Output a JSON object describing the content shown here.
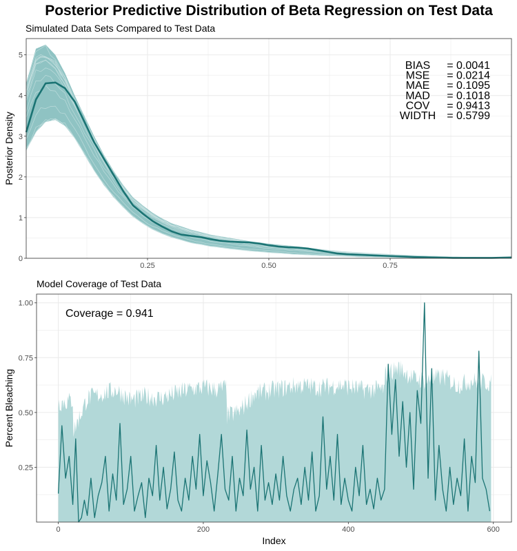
{
  "title": "Posterior Predictive Distribution of Beta Regression on Test Data",
  "colors": {
    "teal_dark": "#1a7373",
    "teal_band": "#8fc3c3",
    "teal_light": "#b2d8d8",
    "grid": "#ebebeb",
    "panel_border": "#333333"
  },
  "chart_data": [
    {
      "type": "area",
      "title": "Simulated Data Sets Compared to Test Data",
      "xlabel": "",
      "ylabel": "Posterior Density",
      "xlim": [
        0,
        1
      ],
      "ylim": [
        0,
        5.4
      ],
      "x_ticks": [
        0.25,
        0.5,
        0.75
      ],
      "x_tick_labels": [
        "0.25",
        "0.50",
        "0.75"
      ],
      "y_ticks": [
        0,
        1,
        2,
        3,
        4,
        5
      ],
      "y_tick_labels": [
        "0",
        "1",
        "2",
        "3",
        "4",
        "5"
      ],
      "grid": true,
      "series": [
        {
          "name": "observed density",
          "x": [
            0,
            0.02,
            0.04,
            0.06,
            0.08,
            0.1,
            0.12,
            0.14,
            0.16,
            0.18,
            0.2,
            0.22,
            0.24,
            0.26,
            0.28,
            0.3,
            0.32,
            0.34,
            0.36,
            0.38,
            0.4,
            0.42,
            0.44,
            0.46,
            0.48,
            0.5,
            0.52,
            0.54,
            0.56,
            0.58,
            0.6,
            0.62,
            0.64,
            0.66,
            0.68,
            0.7,
            0.72,
            0.74,
            0.76,
            0.78,
            0.8,
            0.84,
            0.88,
            0.92,
            0.96,
            1.0
          ],
          "values": [
            3.1,
            3.9,
            4.3,
            4.32,
            4.18,
            3.85,
            3.35,
            2.85,
            2.45,
            2.05,
            1.65,
            1.3,
            1.1,
            0.92,
            0.78,
            0.66,
            0.58,
            0.55,
            0.52,
            0.47,
            0.43,
            0.41,
            0.4,
            0.39,
            0.36,
            0.32,
            0.29,
            0.27,
            0.26,
            0.24,
            0.2,
            0.16,
            0.12,
            0.1,
            0.09,
            0.08,
            0.07,
            0.06,
            0.05,
            0.04,
            0.03,
            0.02,
            0.01,
            0.01,
            0.01,
            0.02
          ]
        },
        {
          "name": "simulated band upper",
          "x": [
            0,
            0.02,
            0.04,
            0.06,
            0.08,
            0.1,
            0.12,
            0.14,
            0.16,
            0.18,
            0.2,
            0.22,
            0.24,
            0.26,
            0.28,
            0.3,
            0.34,
            0.38,
            0.42,
            0.46,
            0.5,
            0.55,
            0.6,
            0.65,
            0.7,
            0.75,
            0.8,
            0.85,
            0.9,
            0.95,
            1.0
          ],
          "values": [
            4.3,
            5.15,
            5.25,
            5.0,
            4.55,
            4.0,
            3.5,
            3.0,
            2.55,
            2.15,
            1.8,
            1.5,
            1.3,
            1.12,
            0.98,
            0.86,
            0.7,
            0.58,
            0.5,
            0.42,
            0.36,
            0.3,
            0.23,
            0.17,
            0.13,
            0.1,
            0.07,
            0.05,
            0.03,
            0.02,
            0.02
          ]
        },
        {
          "name": "simulated band lower",
          "x": [
            0,
            0.02,
            0.04,
            0.06,
            0.08,
            0.1,
            0.12,
            0.14,
            0.16,
            0.18,
            0.2,
            0.22,
            0.24,
            0.26,
            0.28,
            0.3,
            0.34,
            0.38,
            0.42,
            0.46,
            0.5,
            0.55,
            0.6,
            0.65,
            0.7,
            0.75,
            0.8,
            0.85,
            0.9,
            0.95,
            1.0
          ],
          "values": [
            2.65,
            3.1,
            3.35,
            3.4,
            3.25,
            2.95,
            2.55,
            2.15,
            1.8,
            1.5,
            1.25,
            1.02,
            0.85,
            0.71,
            0.6,
            0.51,
            0.38,
            0.29,
            0.23,
            0.18,
            0.14,
            0.1,
            0.07,
            0.05,
            0.03,
            0.02,
            0.01,
            0.01,
            0.0,
            0.0,
            0.0
          ]
        }
      ],
      "annotations": [
        {
          "label": "BIAS",
          "value": "= 0.0041"
        },
        {
          "label": "MSE",
          "value": "= 0.0214"
        },
        {
          "label": "MAE",
          "value": "= 0.1095"
        },
        {
          "label": "MAD",
          "value": "= 0.1018"
        },
        {
          "label": "COV",
          "value": "= 0.9413"
        },
        {
          "label": "WIDTH",
          "value": "= 0.5799"
        }
      ]
    },
    {
      "type": "line",
      "title": "Model Coverage of Test Data",
      "xlabel": "Index",
      "ylabel": "Percent Bleaching",
      "xlim": [
        -30,
        625
      ],
      "ylim": [
        0,
        1.04
      ],
      "x_ticks": [
        0,
        200,
        400,
        600
      ],
      "x_tick_labels": [
        "0",
        "200",
        "400",
        "600"
      ],
      "y_ticks": [
        0.25,
        0.5,
        0.75,
        1.0
      ],
      "y_tick_labels": [
        "0.25",
        "0.50",
        "0.75",
        "1.00"
      ],
      "grid": true,
      "annotation": "Coverage = 0.941",
      "series": [
        {
          "name": "prediction interval upper",
          "x": [
            0,
            20,
            21,
            40,
            60,
            80,
            100,
            120,
            140,
            160,
            180,
            200,
            220,
            232,
            233,
            250,
            270,
            300,
            330,
            360,
            390,
            420,
            440,
            450,
            451,
            470,
            490,
            510,
            530,
            550,
            570,
            597
          ],
          "values": [
            0.54,
            0.55,
            0.41,
            0.56,
            0.58,
            0.6,
            0.55,
            0.57,
            0.56,
            0.58,
            0.6,
            0.61,
            0.6,
            0.61,
            0.48,
            0.5,
            0.58,
            0.6,
            0.62,
            0.61,
            0.62,
            0.6,
            0.6,
            0.6,
            0.67,
            0.7,
            0.65,
            0.64,
            0.66,
            0.62,
            0.64,
            0.63
          ]
        },
        {
          "name": "prediction interval lower",
          "x": [
            0,
            597
          ],
          "values": [
            0.0,
            0.0
          ]
        },
        {
          "name": "test data",
          "x": [
            0,
            5,
            10,
            15,
            20,
            24,
            28,
            32,
            36,
            40,
            45,
            50,
            55,
            60,
            65,
            70,
            75,
            80,
            85,
            90,
            95,
            100,
            105,
            110,
            115,
            120,
            125,
            130,
            135,
            140,
            145,
            150,
            155,
            160,
            165,
            170,
            175,
            180,
            185,
            190,
            195,
            200,
            205,
            210,
            215,
            220,
            225,
            230,
            235,
            240,
            245,
            250,
            255,
            260,
            265,
            270,
            275,
            280,
            285,
            290,
            295,
            300,
            305,
            310,
            315,
            320,
            325,
            330,
            335,
            340,
            345,
            350,
            355,
            360,
            365,
            370,
            375,
            380,
            385,
            390,
            395,
            400,
            405,
            410,
            415,
            420,
            425,
            430,
            435,
            440,
            445,
            450,
            455,
            460,
            465,
            470,
            475,
            480,
            485,
            490,
            495,
            500,
            505,
            510,
            515,
            520,
            525,
            530,
            535,
            540,
            545,
            550,
            555,
            560,
            565,
            570,
            575,
            580,
            585,
            590,
            595
          ],
          "values": [
            0.13,
            0.44,
            0.2,
            0.3,
            0.08,
            0.38,
            0.0,
            0.02,
            0.1,
            0.03,
            0.2,
            0.02,
            0.12,
            0.18,
            0.3,
            0.05,
            0.22,
            0.1,
            0.45,
            0.08,
            0.15,
            0.3,
            0.05,
            0.12,
            0.18,
            0.02,
            0.2,
            0.12,
            0.35,
            0.1,
            0.25,
            0.06,
            0.15,
            0.32,
            0.1,
            0.05,
            0.2,
            0.1,
            0.3,
            0.15,
            0.4,
            0.12,
            0.28,
            0.18,
            0.05,
            0.22,
            0.4,
            0.15,
            0.1,
            0.3,
            0.05,
            0.2,
            0.12,
            0.42,
            0.15,
            0.25,
            0.05,
            0.35,
            0.1,
            0.18,
            0.08,
            0.22,
            0.1,
            0.3,
            0.12,
            0.05,
            0.15,
            0.2,
            0.08,
            0.25,
            0.1,
            0.32,
            0.05,
            0.12,
            0.48,
            0.15,
            0.3,
            0.1,
            0.4,
            0.08,
            0.2,
            0.1,
            0.05,
            0.25,
            0.12,
            0.35,
            0.08,
            0.15,
            0.06,
            0.2,
            0.1,
            0.15,
            0.72,
            0.4,
            0.65,
            0.3,
            0.55,
            0.25,
            0.5,
            0.15,
            0.6,
            0.45,
            1.0,
            0.2,
            0.7,
            0.1,
            0.35,
            0.15,
            0.05,
            0.25,
            0.08,
            0.2,
            0.12,
            0.38,
            0.05,
            0.3,
            0.18,
            0.78,
            0.2,
            0.15,
            0.05
          ]
        }
      ]
    }
  ]
}
